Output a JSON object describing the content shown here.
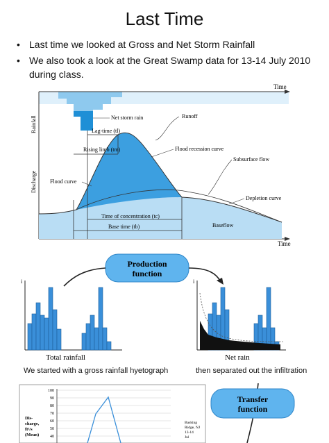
{
  "slide": {
    "title": "Last Time",
    "bullets": [
      "Last time we looked at Gross and Net Storm Rainfall",
      "We also took a look at the Great Swamp data for 13-14 July 2010 during class."
    ]
  },
  "hydrograph": {
    "time_top": "Time",
    "time_bottom": "Time",
    "rainfall_axis": "Rainfall",
    "discharge_axis": "Discharge",
    "labels": {
      "net_storm_rain": "Net storm rain",
      "lag_time": "Lag-time (tl)",
      "runoff": "Runoff",
      "rising_limb": "Rising limb (tm)",
      "flood_recession": "Flood recession curve",
      "subsurface_flow": "Subsurface flow",
      "flood_curve": "Flood curve",
      "depletion_curve": "Depletion curve",
      "time_of_concentration": "Time of concentration (tc)",
      "base_time": "Base time (tb)",
      "baseflow": "Baseflow"
    },
    "colors": {
      "rain_fill": "#8ec9ee",
      "net_rain": "#1f8fd6",
      "flow_fill": "#3c9fe0",
      "baseflow_fill": "#b9ddf4"
    }
  },
  "process": {
    "production_function": "Production function",
    "transfer_function": "Transfer function",
    "total_rainfall": "Total rainfall",
    "net_rain": "Net rain",
    "caption_left": "We started with a gross rainfall hyetograph",
    "caption_right": "then separated out the infiltration",
    "colors": {
      "bar": "#3a8fd9",
      "box": "#5fb4ee"
    }
  },
  "mini_chart": {
    "ylabel": "Dis-\ncharge,\nft³/s\n(Mean)",
    "legend": "Basking Ridge, NJ 13-14 Jul",
    "y_ticks": [
      100,
      90,
      80,
      70,
      60,
      50,
      40
    ]
  }
}
